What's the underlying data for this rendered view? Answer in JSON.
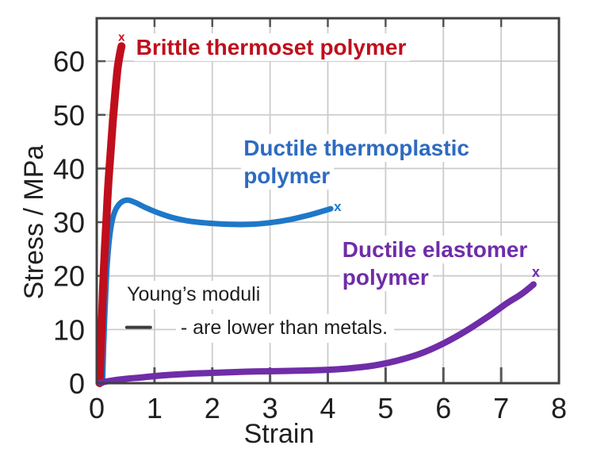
{
  "figure": {
    "background": "#ffffff",
    "border_color": "#404040",
    "grid_color": "#cccccc",
    "tick_color": "#555555",
    "text_color": "#1f1f1f"
  },
  "chart_data": {
    "type": "line",
    "title": "",
    "xlabel": "Strain",
    "ylabel": "Stress / MPa",
    "xlim": [
      0,
      8
    ],
    "ylim": [
      0,
      68
    ],
    "xticks": [
      0,
      1,
      2,
      3,
      4,
      5,
      6,
      7,
      8
    ],
    "yticks": [
      0,
      10,
      20,
      30,
      40,
      50,
      60
    ],
    "grid": true,
    "series": [
      {
        "name": "brittle-thermoset-polymer",
        "label_lines": [
          "Brittle thermoset polymer",
          ""
        ],
        "label_pos": [
          0.64,
          65.2
        ],
        "color": "#c00e1c",
        "label_color": "#c00e1c",
        "line_width": 10,
        "marker": "x",
        "marker_pos": [
          0.43,
          64.6
        ],
        "marker_size": 15,
        "points": [
          [
            0.05,
            0
          ],
          [
            0.07,
            6
          ],
          [
            0.09,
            12
          ],
          [
            0.11,
            18
          ],
          [
            0.14,
            25
          ],
          [
            0.17,
            31
          ],
          [
            0.2,
            37
          ],
          [
            0.24,
            43
          ],
          [
            0.28,
            49
          ],
          [
            0.32,
            54
          ],
          [
            0.36,
            58.5
          ],
          [
            0.4,
            61.3
          ],
          [
            0.43,
            62.8
          ]
        ]
      },
      {
        "name": "ductile-thermoplastic-polymer",
        "label_lines": [
          "Ductile thermoplastic",
          "polymer"
        ],
        "label_pos": [
          2.5,
          46.4
        ],
        "color": "#1e78c8",
        "label_color": "#2e6bc0",
        "line_width": 7,
        "marker": "x",
        "marker_pos": [
          4.17,
          33.0
        ],
        "marker_size": 17,
        "points": [
          [
            0.1,
            0
          ],
          [
            0.12,
            7
          ],
          [
            0.14,
            13
          ],
          [
            0.16,
            18
          ],
          [
            0.18,
            22
          ],
          [
            0.21,
            26
          ],
          [
            0.25,
            29.3
          ],
          [
            0.3,
            31.6
          ],
          [
            0.37,
            33.1
          ],
          [
            0.45,
            33.9
          ],
          [
            0.55,
            34.1
          ],
          [
            0.68,
            33.6
          ],
          [
            0.85,
            32.7
          ],
          [
            1.05,
            31.8
          ],
          [
            1.3,
            30.9
          ],
          [
            1.6,
            30.2
          ],
          [
            1.95,
            29.8
          ],
          [
            2.3,
            29.6
          ],
          [
            2.65,
            29.6
          ],
          [
            3.0,
            29.9
          ],
          [
            3.35,
            30.5
          ],
          [
            3.7,
            31.4
          ],
          [
            4.05,
            32.5
          ]
        ]
      },
      {
        "name": "ductile-elastomer-polymer",
        "label_lines": [
          "Ductile elastomer",
          "polymer"
        ],
        "label_pos": [
          4.21,
          27.5
        ],
        "color": "#6f2da8",
        "label_color": "#6f2da8",
        "line_width": 8,
        "marker": "x",
        "marker_pos": [
          7.6,
          20.8
        ],
        "marker_size": 18,
        "points": [
          [
            0.05,
            0.1
          ],
          [
            0.4,
            0.7
          ],
          [
            0.8,
            1.1
          ],
          [
            1.2,
            1.5
          ],
          [
            1.7,
            1.8
          ],
          [
            2.2,
            2.0
          ],
          [
            2.8,
            2.2
          ],
          [
            3.4,
            2.3
          ],
          [
            4.0,
            2.5
          ],
          [
            4.4,
            2.8
          ],
          [
            4.8,
            3.3
          ],
          [
            5.2,
            4.2
          ],
          [
            5.6,
            5.5
          ],
          [
            6.0,
            7.4
          ],
          [
            6.4,
            9.8
          ],
          [
            6.8,
            12.6
          ],
          [
            7.1,
            14.9
          ],
          [
            7.35,
            16.6
          ],
          [
            7.56,
            18.4
          ]
        ]
      }
    ],
    "annotations": [
      {
        "text": "Young’s moduli",
        "pos": [
          0.44,
          19.0
        ],
        "color": "#1f1f1f"
      },
      {
        "text": "- are lower than metals.",
        "pos": [
          1.37,
          12.8
        ],
        "color": "#1f1f1f"
      }
    ],
    "dash_marker": {
      "from": [
        0.52,
        10.4
      ],
      "to": [
        0.93,
        10.4
      ],
      "color": "#3c3c3c",
      "width": 4
    }
  }
}
